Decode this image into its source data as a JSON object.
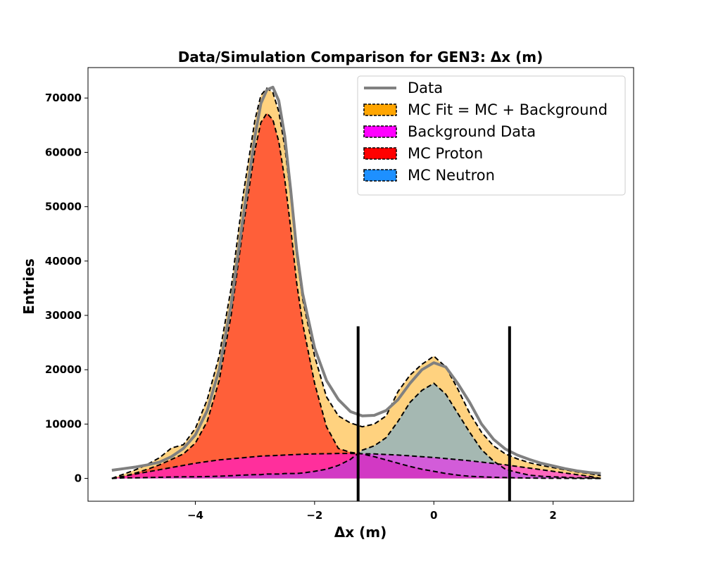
{
  "chart_data": {
    "type": "area",
    "title": "Data/Simulation Comparison for GEN3: Δx (m)",
    "xlabel": "Δx (m)",
    "ylabel": "Entries",
    "xlim": [
      -5.8,
      3.35
    ],
    "ylim": [
      -4200,
      75600
    ],
    "xticks": [
      -4,
      -2,
      0,
      2
    ],
    "xtick_labels": [
      "−4",
      "−2",
      "0",
      "2"
    ],
    "yticks": [
      0,
      10000,
      20000,
      30000,
      40000,
      50000,
      60000,
      70000
    ],
    "ytick_labels": [
      "0",
      "10000",
      "20000",
      "30000",
      "40000",
      "50000",
      "60000",
      "70000"
    ],
    "grid": false,
    "legend_position": "top-right",
    "legend": [
      {
        "label": "Data",
        "kind": "line",
        "color": "#808080"
      },
      {
        "label": "MC Fit = MC + Background",
        "kind": "patch",
        "color": "#ffa500"
      },
      {
        "label": "Background Data",
        "kind": "patch",
        "color": "#ff00ff"
      },
      {
        "label": "MC Proton",
        "kind": "patch",
        "color": "#ff0000"
      },
      {
        "label": "MC Neutron",
        "kind": "patch",
        "color": "#1e90ff"
      }
    ],
    "cut_lines": [
      -1.27,
      1.27
    ],
    "cut_line_top": 28000,
    "x": [
      -5.4,
      -5.2,
      -5.0,
      -4.8,
      -4.6,
      -4.4,
      -4.2,
      -4.0,
      -3.8,
      -3.6,
      -3.4,
      -3.2,
      -3.0,
      -2.9,
      -2.8,
      -2.7,
      -2.6,
      -2.5,
      -2.4,
      -2.3,
      -2.2,
      -2.0,
      -1.8,
      -1.6,
      -1.4,
      -1.2,
      -1.0,
      -0.8,
      -0.6,
      -0.4,
      -0.2,
      0.0,
      0.2,
      0.4,
      0.6,
      0.8,
      1.0,
      1.2,
      1.4,
      1.6,
      1.8,
      2.0,
      2.2,
      2.4,
      2.6,
      2.8
    ],
    "series": [
      {
        "name": "Data",
        "color": "#808080",
        "values": [
          1500,
          1800,
          2100,
          2500,
          3000,
          4000,
          5500,
          8000,
          12500,
          20000,
          32000,
          48000,
          63000,
          69000,
          71500,
          72000,
          69500,
          63000,
          53000,
          42000,
          34000,
          24000,
          18000,
          14500,
          12300,
          11500,
          11600,
          12500,
          14500,
          17500,
          20000,
          21300,
          20500,
          17500,
          14000,
          10000,
          7200,
          5400,
          4300,
          3500,
          2800,
          2300,
          1800,
          1400,
          1100,
          900
        ]
      },
      {
        "name": "MC Fit = MC + Background",
        "color": "#ffa500",
        "values": [
          0,
          800,
          1600,
          2600,
          3800,
          5600,
          6200,
          9200,
          14500,
          22500,
          35000,
          52000,
          66000,
          70500,
          71800,
          71000,
          67500,
          61000,
          52000,
          41000,
          33000,
          22500,
          15000,
          11500,
          10200,
          9500,
          10000,
          11500,
          16000,
          19000,
          21000,
          22500,
          20500,
          16500,
          12000,
          8500,
          6000,
          4500,
          3600,
          2900,
          2400,
          2000,
          1600,
          1200,
          900,
          500
        ]
      },
      {
        "name": "MC Proton",
        "color": "#ff0000",
        "values": [
          0,
          400,
          1000,
          1700,
          2500,
          3500,
          4500,
          6500,
          10500,
          18000,
          30000,
          46000,
          60500,
          65500,
          67200,
          66000,
          62000,
          55000,
          46000,
          36000,
          28500,
          17500,
          9500,
          5500,
          4800,
          4500,
          4000,
          3400,
          2800,
          2200,
          1700,
          1300,
          900,
          600,
          400,
          300,
          200,
          150,
          100,
          60,
          30,
          20,
          10,
          0,
          0,
          0
        ]
      },
      {
        "name": "MC Neutron",
        "color": "#1e90ff",
        "values": [
          0,
          100,
          100,
          150,
          200,
          250,
          300,
          300,
          350,
          400,
          500,
          600,
          700,
          700,
          800,
          800,
          800,
          900,
          900,
          900,
          1000,
          1300,
          1700,
          2400,
          3500,
          5200,
          6000,
          7500,
          10500,
          14000,
          16200,
          17500,
          15500,
          12000,
          8500,
          5300,
          3200,
          1700,
          1100,
          600,
          400,
          300,
          200,
          100,
          100,
          0
        ]
      },
      {
        "name": "Background Data",
        "color": "#ff00ff",
        "values": [
          0,
          400,
          800,
          1200,
          1600,
          2000,
          2400,
          2800,
          3100,
          3400,
          3600,
          3800,
          4000,
          4100,
          4150,
          4200,
          4250,
          4300,
          4350,
          4400,
          4450,
          4500,
          4550,
          4600,
          4600,
          4550,
          4500,
          4400,
          4300,
          4150,
          4000,
          3850,
          3650,
          3450,
          3250,
          3000,
          2750,
          2500,
          2200,
          1900,
          1600,
          1300,
          1000,
          700,
          400,
          0
        ]
      }
    ]
  }
}
